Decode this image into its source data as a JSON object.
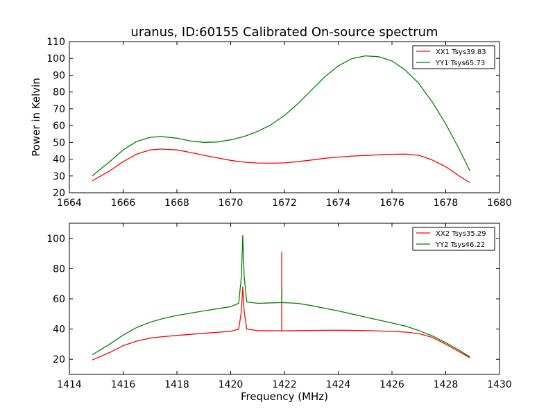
{
  "chart_data": [
    {
      "type": "line",
      "title": "uranus, ID:60155 Calibrated On-source spectrum",
      "xlabel": "",
      "ylabel": "Power in Kelvin",
      "xlim": [
        1664,
        1680
      ],
      "ylim": [
        20,
        110
      ],
      "xticks": [
        1664,
        1666,
        1668,
        1670,
        1672,
        1674,
        1676,
        1678,
        1680
      ],
      "yticks": [
        20,
        30,
        40,
        50,
        60,
        70,
        80,
        90,
        100,
        110
      ],
      "legend_position": "top-right",
      "grid": false,
      "series": [
        {
          "name": "XX1 Tsys39.83",
          "color": "#ff0000",
          "x": [
            1664.85,
            1665.0,
            1665.5,
            1666.0,
            1666.5,
            1667.0,
            1667.4,
            1668.0,
            1668.5,
            1669.0,
            1669.5,
            1670.0,
            1670.5,
            1671.0,
            1671.5,
            1672.0,
            1672.5,
            1673.0,
            1673.5,
            1674.0,
            1674.5,
            1675.0,
            1675.5,
            1676.0,
            1676.5,
            1677.0,
            1677.5,
            1678.0,
            1678.5,
            1678.9
          ],
          "y": [
            27,
            28.5,
            33,
            38.5,
            43,
            45.5,
            46,
            45.5,
            44,
            42.3,
            40.8,
            39.3,
            38.2,
            37.7,
            37.6,
            37.8,
            38.5,
            39.5,
            40.5,
            41.2,
            41.8,
            42.2,
            42.6,
            42.9,
            43.0,
            42.3,
            39.5,
            35.5,
            30,
            26
          ]
        },
        {
          "name": "YY1 Tsys65.73",
          "color": "#008000",
          "x": [
            1664.85,
            1665.0,
            1665.5,
            1666.0,
            1666.5,
            1667.0,
            1667.4,
            1668.0,
            1668.5,
            1669.0,
            1669.5,
            1670.0,
            1670.5,
            1671.0,
            1671.5,
            1672.0,
            1672.5,
            1673.0,
            1673.5,
            1674.0,
            1674.5,
            1675.0,
            1675.5,
            1676.0,
            1676.5,
            1677.0,
            1677.5,
            1678.0,
            1678.5,
            1678.9
          ],
          "y": [
            30,
            32,
            38.5,
            45.5,
            50.5,
            53,
            53.5,
            52.5,
            50.8,
            50,
            50.2,
            51.5,
            53.5,
            56.5,
            60.5,
            66,
            73,
            81,
            89,
            95.5,
            99.8,
            101.5,
            101,
            98.5,
            93,
            85,
            74,
            61,
            46,
            33
          ]
        }
      ]
    },
    {
      "type": "line",
      "title": "",
      "xlabel": "Frequency (MHz)",
      "ylabel": "",
      "xlim": [
        1414,
        1430
      ],
      "ylim": [
        10,
        110
      ],
      "xticks": [
        1414,
        1416,
        1418,
        1420,
        1422,
        1424,
        1426,
        1428,
        1430
      ],
      "yticks": [
        20,
        40,
        60,
        80,
        100
      ],
      "legend_position": "top-right",
      "grid": false,
      "series": [
        {
          "name": "XX2 Tsys35.29",
          "color": "#ff0000",
          "x": [
            1414.85,
            1415.5,
            1416.0,
            1416.5,
            1417.0,
            1417.5,
            1418.0,
            1419.0,
            1420.0,
            1420.3,
            1420.4,
            1420.45,
            1420.5,
            1420.6,
            1421.0,
            1421.9,
            1421.9,
            1421.9,
            1421.9,
            1422.5,
            1423.0,
            1424.0,
            1425.0,
            1426.0,
            1426.5,
            1427.0,
            1427.5,
            1428.0,
            1428.5,
            1428.9
          ],
          "y": [
            19.5,
            24.5,
            29,
            32,
            34,
            35,
            35.8,
            37.2,
            38.5,
            40,
            52,
            68,
            52,
            40,
            39,
            38.8,
            91,
            38.8,
            38.8,
            39,
            39.1,
            39.2,
            39.0,
            38.5,
            38,
            37,
            34.5,
            30,
            25,
            21
          ]
        },
        {
          "name": "YY2 Tsys46.22",
          "color": "#008000",
          "x": [
            1414.85,
            1415.5,
            1416.0,
            1416.5,
            1417.0,
            1417.5,
            1418.0,
            1419.0,
            1420.0,
            1420.3,
            1420.4,
            1420.45,
            1420.5,
            1420.6,
            1421.0,
            1421.9,
            1421.9,
            1421.9,
            1421.9,
            1422.5,
            1423.0,
            1424.0,
            1425.0,
            1426.0,
            1426.5,
            1427.0,
            1427.5,
            1428.0,
            1428.5,
            1428.9
          ],
          "y": [
            23,
            30,
            36,
            41,
            44.5,
            47,
            49,
            52,
            54.8,
            57,
            75,
            102,
            75,
            58,
            57,
            57.5,
            66,
            57.5,
            57.5,
            57,
            55.5,
            52,
            48,
            44,
            42,
            39,
            35.5,
            31,
            26,
            21.5
          ]
        }
      ]
    }
  ]
}
